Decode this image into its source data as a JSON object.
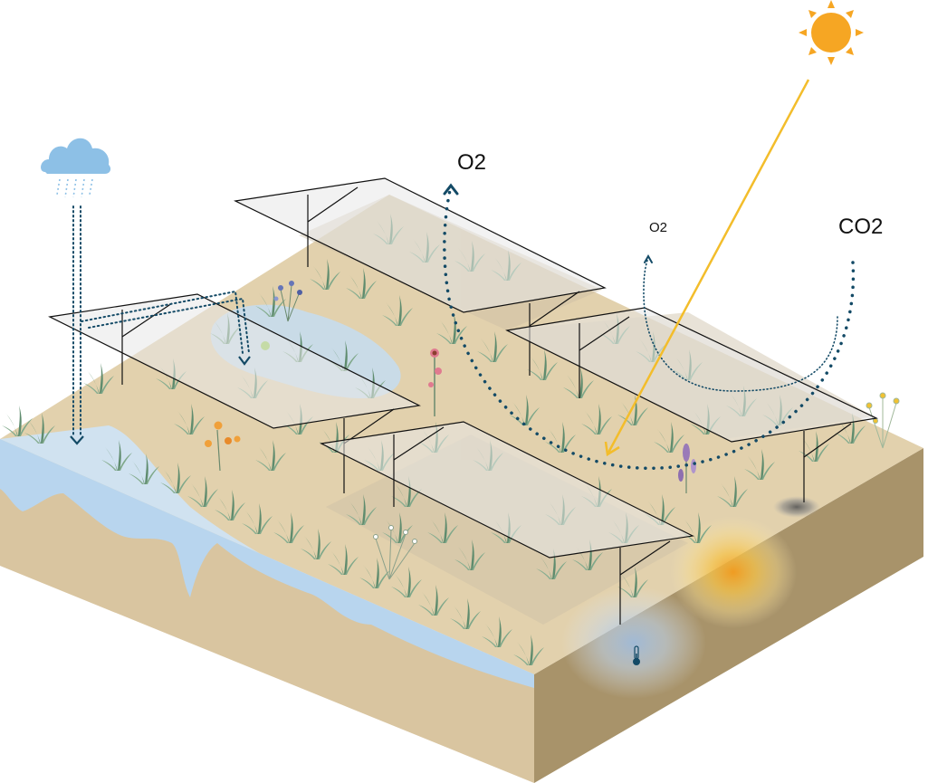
{
  "labels": {
    "o2_large": "O2",
    "o2_small": "O2",
    "co2": "CO2"
  },
  "colors": {
    "soil_top": "#e2d1ad",
    "soil_side_left": "#d9c5a0",
    "soil_side_right": "#a8936a",
    "water": "#cfe3f3",
    "arrow_dotted": "#134a66",
    "sun": "#f6a623",
    "sun_ray": "#f3bd2b",
    "panel": "rgba(232,232,232,0.45)",
    "grass": "#6f9a7c",
    "heat_glow": "#f6c34a",
    "cool_glow": "#a9c7e3"
  },
  "icons": [
    "sun-icon",
    "rain-cloud-icon",
    "thermometer-icon"
  ]
}
